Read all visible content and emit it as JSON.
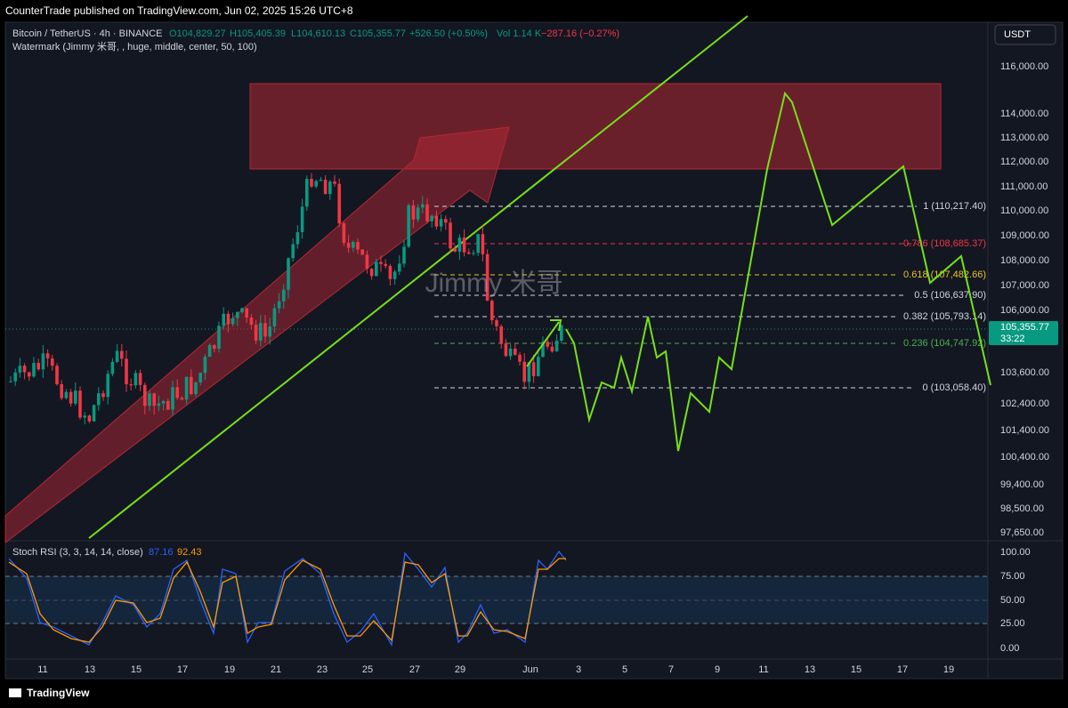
{
  "header": {
    "publisher": "CounterTrade published on TradingView.com, Jun 02, 2025 15:26 UTC+8"
  },
  "legend": {
    "symbol": "Bitcoin / TetherUS · 4h · BINANCE",
    "open": "O104,829.27",
    "high": "H105,405.39",
    "low": "L104,610.13",
    "close": "C105,355.77",
    "change": "+526.50 (+0.50%)",
    "volume": "Vol 1.14 K",
    "volume_change": "−287.16 (−0.27%)",
    "watermark": "Watermark (Jimmy 米哥, , huge, middle, center, 50, 100)"
  },
  "watermark_text": "Jimmy 米哥",
  "currency_button": "USDT",
  "price_axis": [
    "116,000.00",
    "114,000.00",
    "113,000.00",
    "112,000.00",
    "111,000.00",
    "110,000.00",
    "109,000.00",
    "108,000.00",
    "107,000.00",
    "106,000.00",
    "103,600.00",
    "102,400.00",
    "101,400.00",
    "100,400.00",
    "99,400.00",
    "98,500.00",
    "97,650.00"
  ],
  "last_price": {
    "price": "105,355.77",
    "countdown": "33:22"
  },
  "fib_levels": [
    "1 (110,217.40)",
    "0.786 (108,685.37)",
    "0.618 (107,482.66)",
    "0.5 (106,637.90)",
    "0.382 (105,793.14)",
    "0.236 (104,747.92)",
    "0 (103,058.40)"
  ],
  "rsi": {
    "label": "Stoch RSI (3, 3, 14, 14, close)",
    "k": "87.16",
    "d": "92.43",
    "axis": [
      "100.00",
      "75.00",
      "50.00",
      "25.00",
      "0.00"
    ]
  },
  "time_axis": [
    "11",
    "13",
    "15",
    "17",
    "19",
    "21",
    "23",
    "25",
    "27",
    "29",
    "Jun",
    "3",
    "5",
    "7",
    "9",
    "11",
    "13",
    "15",
    "17",
    "19"
  ],
  "footer": {
    "brand": "TradingView"
  }
}
